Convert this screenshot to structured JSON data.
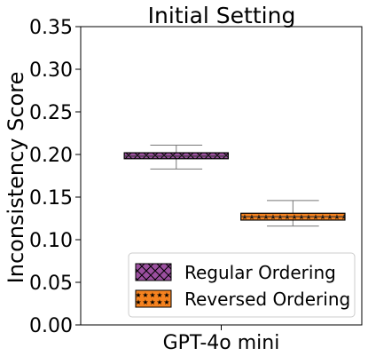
{
  "chart_data": {
    "type": "box",
    "title": "Initial Setting",
    "xlabel": "",
    "ylabel": "Inconsistency Score",
    "categories": [
      "GPT-4o mini"
    ],
    "ylim": [
      0.0,
      0.35
    ],
    "yticks": [
      "0.00",
      "0.05",
      "0.10",
      "0.15",
      "0.20",
      "0.25",
      "0.30",
      "0.35"
    ],
    "grid": false,
    "legend_position": "bottom-right",
    "series": [
      {
        "name": "Regular Ordering",
        "color": "#9b4f9f",
        "hatch": "x",
        "whisker_low": 0.183,
        "q1": 0.195,
        "median": 0.198,
        "q3": 0.202,
        "whisker_high": 0.211
      },
      {
        "name": "Reversed Ordering",
        "color": "#f5821f",
        "hatch": "star",
        "whisker_low": 0.116,
        "q1": 0.123,
        "median": 0.127,
        "q3": 0.131,
        "whisker_high": 0.146
      }
    ]
  }
}
